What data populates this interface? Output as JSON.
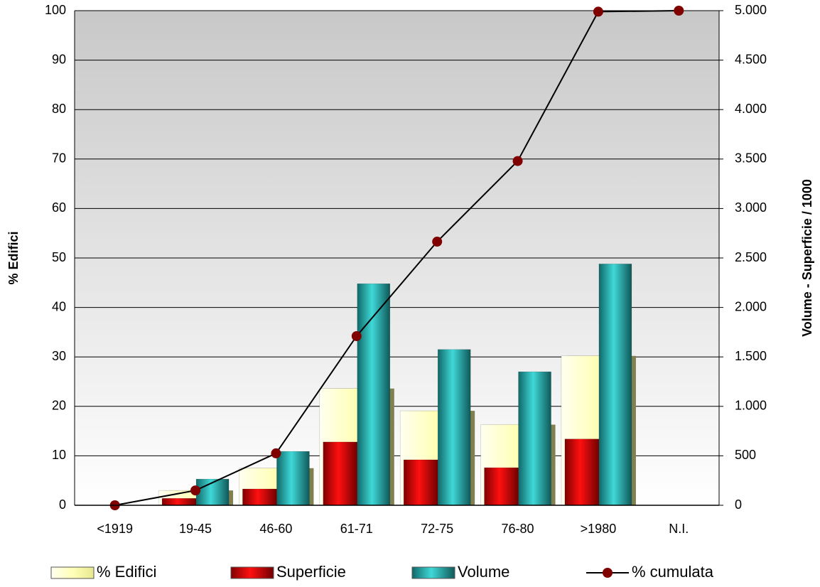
{
  "chart_data": {
    "type": "bar",
    "y_label": "% Edifici",
    "y2_label": "Volume - Superficie / 1000",
    "categories": [
      "<1919",
      "19-45",
      "46-60",
      "61-71",
      "72-75",
      "76-80",
      ">1980",
      "N.I."
    ],
    "series": [
      {
        "name": "% Edifici",
        "color": "#ffffc0",
        "values": [
          0,
          3,
          7.5,
          23.6,
          19.1,
          16.3,
          30.2,
          0
        ]
      },
      {
        "name": "Superficie",
        "color": "#e00000",
        "axis": "y2",
        "values": [
          0,
          70,
          165,
          640,
          460,
          380,
          670,
          0
        ]
      },
      {
        "name": "Volume",
        "color": "#30c0c0",
        "axis": "y2",
        "values": [
          0,
          265,
          545,
          2240,
          1575,
          1350,
          2440,
          0
        ]
      },
      {
        "name": "% cumulata",
        "color": "#800000",
        "type": "line",
        "values": [
          0,
          3,
          10.5,
          34.2,
          53.3,
          69.6,
          99.8,
          100
        ]
      }
    ],
    "ylim": [
      0,
      100
    ],
    "yticks": [
      0,
      10,
      20,
      30,
      40,
      50,
      60,
      70,
      80,
      90,
      100
    ],
    "y2lim": [
      0,
      5000
    ],
    "y2ticks": [
      0,
      500,
      {
        "value": 1000,
        "label": "1.000"
      },
      {
        "value": 1500,
        "label": "1.500"
      },
      {
        "value": 2000,
        "label": "2.000"
      },
      {
        "value": 2500,
        "label": "2.500"
      },
      {
        "value": 3000,
        "label": "3.000"
      },
      {
        "value": 3500,
        "label": "3.500"
      },
      {
        "value": 4000,
        "label": "4.000"
      },
      {
        "value": 4500,
        "label": "4.500"
      },
      {
        "value": 5000,
        "label": "5.000"
      }
    ],
    "grid": true,
    "legend": "bottom"
  }
}
